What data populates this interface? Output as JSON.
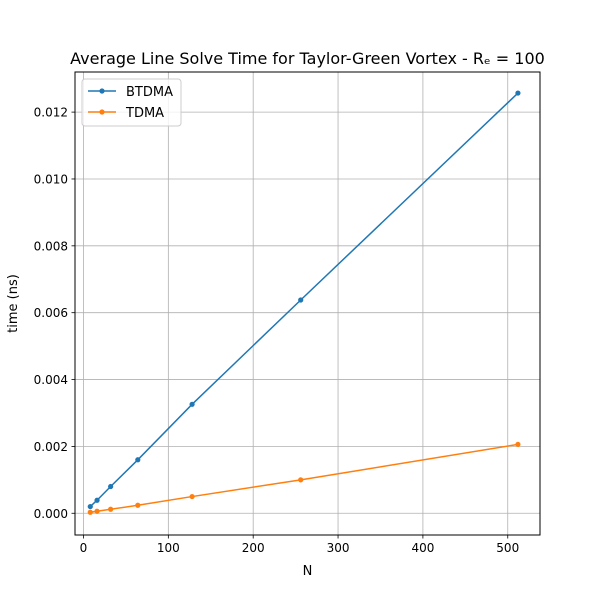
{
  "chart_data": {
    "type": "line",
    "title": "Average Line Solve Time for Taylor-Green Vortex - Rₑ = 100",
    "xlabel": "N",
    "ylabel": "time (ns)",
    "xlim": [
      -10,
      538
    ],
    "ylim": [
      -0.00065,
      0.0132
    ],
    "xticks": [
      0,
      100,
      200,
      300,
      400,
      500
    ],
    "xtick_labels": [
      "0",
      "100",
      "200",
      "300",
      "400",
      "500"
    ],
    "yticks": [
      0.0,
      0.002,
      0.004,
      0.006,
      0.008,
      0.01,
      0.012
    ],
    "ytick_labels": [
      "0.000",
      "0.002",
      "0.004",
      "0.006",
      "0.008",
      "0.010",
      "0.012"
    ],
    "grid": true,
    "legend_position": "top-left",
    "series": [
      {
        "name": "BTDMA",
        "color": "#1f77b4",
        "marker": "circle",
        "x": [
          8,
          16,
          32,
          64,
          128,
          256,
          512
        ],
        "y": [
          0.0002,
          0.00039,
          0.0008,
          0.0016,
          0.00326,
          0.00638,
          0.01257
        ]
      },
      {
        "name": "TDMA",
        "color": "#ff7f0e",
        "marker": "circle",
        "x": [
          8,
          16,
          32,
          64,
          128,
          256,
          512
        ],
        "y": [
          3e-05,
          6e-05,
          0.00012,
          0.00024,
          0.0005,
          0.001,
          0.00206
        ]
      }
    ]
  }
}
